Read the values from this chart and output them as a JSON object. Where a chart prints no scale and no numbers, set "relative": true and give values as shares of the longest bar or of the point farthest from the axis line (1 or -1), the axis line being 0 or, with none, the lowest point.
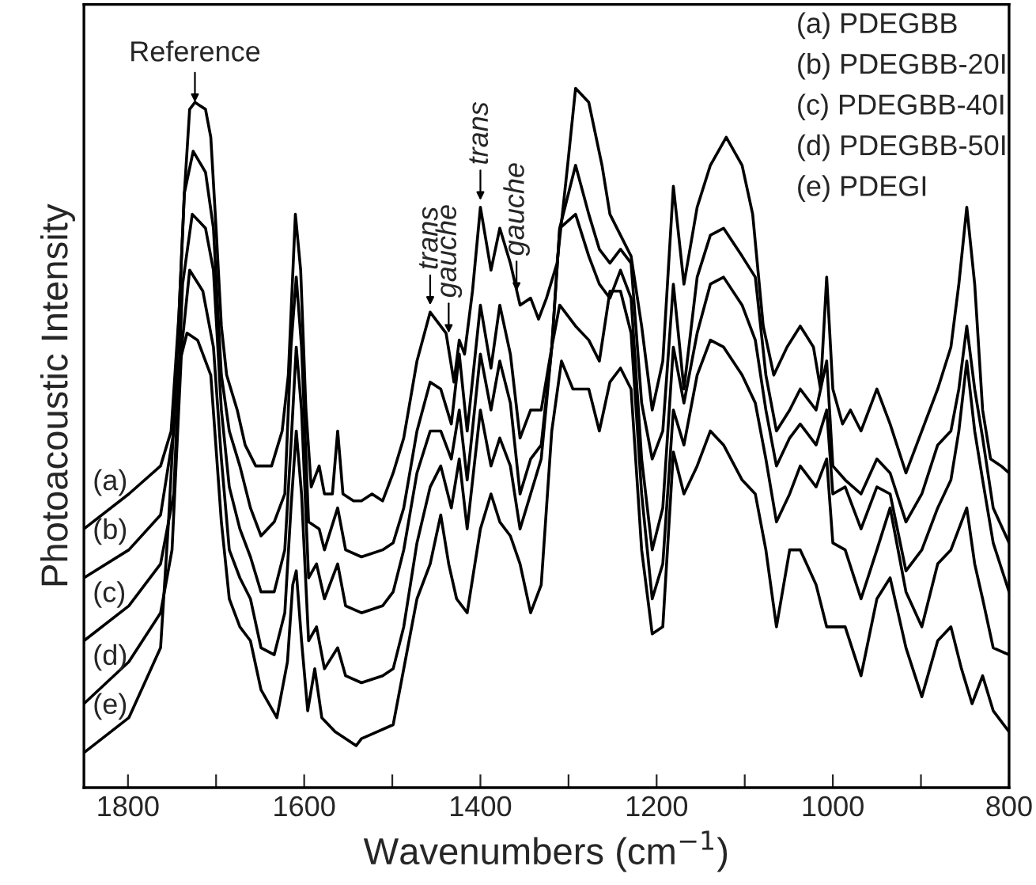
{
  "chart_data": {
    "type": "line",
    "relative": true,
    "xlabel": "Wavenumbers (cm$^{−1}$)",
    "ylabel": "Photoacoustic Intensity",
    "xlim": [
      1850,
      800
    ],
    "xticks": [
      1800,
      {
        "value": 1700,
        "label": null
      },
      1600,
      {
        "value": 1500,
        "label": null
      },
      1400,
      {
        "value": 1300,
        "label": null
      },
      1200,
      {
        "value": 1100,
        "label": null
      },
      1000,
      {
        "value": 900,
        "label": null
      },
      800
    ],
    "tick_labels": "x",
    "annotations": [
      "(a) PDEGBB",
      "(b) PDEGBB-20I",
      "(c) PDEGBB-40I",
      "(d) PDEGBB-50I",
      "(e) PDEGI",
      {
        "text": "Reference",
        "x": 1724,
        "y": 0.98
      },
      {
        "text": "trans",
        "x": 1457,
        "y": 0.69
      },
      {
        "text": "gauche",
        "x": 1436,
        "y": 0.65
      },
      {
        "text": "trans",
        "x": 1400,
        "y": 0.84
      },
      {
        "text": "gauche",
        "x": 1359,
        "y": 0.71
      }
    ],
    "series": [
      {
        "name": "(a)",
        "color": "#000000",
        "x": [
          1850,
          1799,
          1763,
          1751,
          1742,
          1736,
          1730,
          1724,
          1712,
          1706,
          1700,
          1694,
          1688,
          1676,
          1667,
          1655,
          1637,
          1625,
          1618,
          1610,
          1604,
          1598,
          1592,
          1583,
          1577,
          1568,
          1562,
          1556,
          1544,
          1535,
          1523,
          1511,
          1499,
          1487,
          1472,
          1457,
          1439,
          1430,
          1424,
          1418,
          1409,
          1400,
          1388,
          1378,
          1366,
          1355,
          1343,
          1334,
          1325,
          1313,
          1301,
          1292,
          1277,
          1262,
          1253,
          1241,
          1229,
          1217,
          1205,
          1193,
          1181,
          1169,
          1154,
          1139,
          1121,
          1103,
          1091,
          1079,
          1067,
          1052,
          1037,
          1022,
          1014,
          1007,
          1000,
          989,
          980,
          968,
          950,
          935,
          917,
          899,
          881,
          866,
          857,
          848,
          839,
          830,
          821,
          809,
          800
        ],
        "values": [
          0.37,
          0.42,
          0.46,
          0.51,
          0.68,
          0.85,
          0.97,
          0.98,
          0.97,
          0.93,
          0.8,
          0.66,
          0.59,
          0.54,
          0.49,
          0.46,
          0.46,
          0.51,
          0.59,
          0.82,
          0.74,
          0.54,
          0.43,
          0.46,
          0.42,
          0.42,
          0.51,
          0.42,
          0.41,
          0.41,
          0.42,
          0.41,
          0.45,
          0.5,
          0.61,
          0.68,
          0.65,
          0.58,
          0.64,
          0.62,
          0.71,
          0.83,
          0.74,
          0.8,
          0.75,
          0.69,
          0.7,
          0.67,
          0.7,
          0.75,
          0.89,
          1.0,
          0.98,
          0.89,
          0.82,
          0.79,
          0.76,
          0.66,
          0.54,
          0.61,
          0.86,
          0.72,
          0.83,
          0.89,
          0.93,
          0.89,
          0.82,
          0.66,
          0.59,
          0.63,
          0.66,
          0.63,
          0.57,
          0.73,
          0.57,
          0.52,
          0.54,
          0.51,
          0.57,
          0.52,
          0.45,
          0.51,
          0.57,
          0.63,
          0.72,
          0.83,
          0.72,
          0.54,
          0.47,
          0.46,
          0.45
        ]
      },
      {
        "name": "(b)",
        "color": "#000000",
        "x": [
          1850,
          1799,
          1763,
          1748,
          1736,
          1726,
          1712,
          1703,
          1694,
          1685,
          1673,
          1661,
          1649,
          1634,
          1622,
          1615,
          1609,
          1603,
          1595,
          1583,
          1577,
          1562,
          1553,
          1535,
          1511,
          1499,
          1487,
          1472,
          1457,
          1445,
          1433,
          1424,
          1415,
          1400,
          1388,
          1378,
          1366,
          1355,
          1343,
          1331,
          1319,
          1310,
          1292,
          1277,
          1265,
          1253,
          1241,
          1229,
          1217,
          1205,
          1193,
          1181,
          1169,
          1154,
          1139,
          1124,
          1103,
          1088,
          1076,
          1064,
          1049,
          1037,
          1019,
          1007,
          1000,
          986,
          968,
          950,
          935,
          917,
          899,
          881,
          866,
          857,
          848,
          839,
          830,
          818,
          800
        ],
        "values": [
          0.3,
          0.34,
          0.39,
          0.51,
          0.85,
          0.91,
          0.88,
          0.8,
          0.59,
          0.51,
          0.46,
          0.4,
          0.36,
          0.38,
          0.42,
          0.63,
          0.73,
          0.63,
          0.38,
          0.37,
          0.34,
          0.4,
          0.34,
          0.33,
          0.34,
          0.35,
          0.4,
          0.51,
          0.58,
          0.57,
          0.52,
          0.62,
          0.51,
          0.69,
          0.6,
          0.69,
          0.62,
          0.5,
          0.54,
          0.54,
          0.63,
          0.8,
          0.89,
          0.82,
          0.77,
          0.75,
          0.77,
          0.75,
          0.55,
          0.47,
          0.51,
          0.72,
          0.57,
          0.73,
          0.79,
          0.8,
          0.76,
          0.73,
          0.59,
          0.51,
          0.54,
          0.57,
          0.54,
          0.61,
          0.46,
          0.44,
          0.42,
          0.47,
          0.45,
          0.38,
          0.42,
          0.49,
          0.51,
          0.57,
          0.66,
          0.57,
          0.5,
          0.4,
          0.35
        ]
      },
      {
        "name": "(c)",
        "color": "#000000",
        "x": [
          1850,
          1799,
          1763,
          1748,
          1738,
          1727,
          1712,
          1703,
          1694,
          1685,
          1673,
          1661,
          1649,
          1634,
          1622,
          1615,
          1609,
          1603,
          1595,
          1586,
          1577,
          1562,
          1553,
          1535,
          1511,
          1499,
          1487,
          1472,
          1457,
          1445,
          1433,
          1424,
          1415,
          1400,
          1388,
          1378,
          1366,
          1355,
          1343,
          1331,
          1319,
          1310,
          1292,
          1277,
          1265,
          1253,
          1241,
          1229,
          1217,
          1205,
          1193,
          1181,
          1169,
          1154,
          1139,
          1124,
          1103,
          1088,
          1076,
          1064,
          1049,
          1037,
          1019,
          1007,
          1000,
          986,
          968,
          950,
          935,
          917,
          899,
          881,
          866,
          857,
          848,
          839,
          830,
          818,
          800
        ],
        "values": [
          0.21,
          0.26,
          0.32,
          0.42,
          0.72,
          0.82,
          0.8,
          0.74,
          0.54,
          0.43,
          0.37,
          0.33,
          0.28,
          0.28,
          0.34,
          0.49,
          0.63,
          0.54,
          0.3,
          0.32,
          0.27,
          0.32,
          0.26,
          0.25,
          0.26,
          0.28,
          0.34,
          0.45,
          0.51,
          0.51,
          0.47,
          0.54,
          0.44,
          0.62,
          0.54,
          0.61,
          0.55,
          0.42,
          0.47,
          0.49,
          0.63,
          0.8,
          0.82,
          0.76,
          0.72,
          0.7,
          0.74,
          0.7,
          0.47,
          0.34,
          0.4,
          0.63,
          0.55,
          0.65,
          0.72,
          0.73,
          0.69,
          0.64,
          0.54,
          0.46,
          0.5,
          0.52,
          0.49,
          0.54,
          0.42,
          0.43,
          0.37,
          0.43,
          0.42,
          0.31,
          0.34,
          0.4,
          0.44,
          0.51,
          0.61,
          0.51,
          0.44,
          0.35,
          0.28
        ]
      },
      {
        "name": "(d)",
        "color": "#000000",
        "x": [
          1850,
          1799,
          1763,
          1750,
          1739,
          1730,
          1715,
          1703,
          1694,
          1685,
          1673,
          1661,
          1649,
          1634,
          1622,
          1615,
          1609,
          1603,
          1595,
          1586,
          1577,
          1562,
          1553,
          1535,
          1511,
          1499,
          1487,
          1472,
          1457,
          1445,
          1433,
          1424,
          1415,
          1400,
          1388,
          1378,
          1366,
          1355,
          1343,
          1331,
          1319,
          1310,
          1292,
          1277,
          1265,
          1253,
          1241,
          1229,
          1217,
          1205,
          1193,
          1181,
          1169,
          1154,
          1139,
          1124,
          1103,
          1088,
          1076,
          1064,
          1049,
          1037,
          1019,
          1007,
          1000,
          986,
          968,
          950,
          935,
          917,
          899,
          881,
          866,
          857,
          848,
          839,
          830,
          818,
          800
        ],
        "values": [
          0.12,
          0.18,
          0.25,
          0.34,
          0.63,
          0.74,
          0.71,
          0.63,
          0.47,
          0.34,
          0.3,
          0.27,
          0.2,
          0.19,
          0.25,
          0.4,
          0.51,
          0.42,
          0.21,
          0.23,
          0.17,
          0.2,
          0.16,
          0.15,
          0.16,
          0.17,
          0.23,
          0.35,
          0.43,
          0.46,
          0.4,
          0.47,
          0.37,
          0.54,
          0.46,
          0.5,
          0.46,
          0.37,
          0.42,
          0.47,
          0.63,
          0.69,
          0.66,
          0.64,
          0.61,
          0.71,
          0.71,
          0.65,
          0.42,
          0.27,
          0.32,
          0.54,
          0.49,
          0.59,
          0.64,
          0.63,
          0.59,
          0.55,
          0.47,
          0.38,
          0.42,
          0.46,
          0.43,
          0.47,
          0.35,
          0.34,
          0.27,
          0.34,
          0.4,
          0.28,
          0.23,
          0.32,
          0.34,
          0.37,
          0.4,
          0.32,
          0.27,
          0.2,
          0.19
        ]
      },
      {
        "name": "(e)",
        "color": "#000000",
        "x": [
          1850,
          1799,
          1763,
          1754,
          1745,
          1733,
          1721,
          1706,
          1694,
          1685,
          1673,
          1661,
          1649,
          1631,
          1619,
          1613,
          1609,
          1603,
          1596,
          1588,
          1580,
          1565,
          1541,
          1535,
          1517,
          1499,
          1487,
          1472,
          1457,
          1445,
          1436,
          1427,
          1415,
          1400,
          1388,
          1378,
          1366,
          1355,
          1343,
          1331,
          1319,
          1308,
          1295,
          1277,
          1265,
          1253,
          1241,
          1229,
          1217,
          1205,
          1193,
          1181,
          1169,
          1154,
          1139,
          1124,
          1103,
          1088,
          1076,
          1064,
          1049,
          1037,
          1019,
          1007,
          1000,
          986,
          968,
          950,
          935,
          917,
          899,
          881,
          866,
          854,
          842,
          830,
          818,
          800
        ],
        "values": [
          0.05,
          0.1,
          0.2,
          0.38,
          0.59,
          0.65,
          0.64,
          0.59,
          0.38,
          0.27,
          0.23,
          0.21,
          0.14,
          0.1,
          0.18,
          0.29,
          0.31,
          0.21,
          0.11,
          0.17,
          0.1,
          0.08,
          0.06,
          0.07,
          0.08,
          0.09,
          0.17,
          0.27,
          0.32,
          0.39,
          0.32,
          0.27,
          0.25,
          0.37,
          0.42,
          0.38,
          0.36,
          0.32,
          0.25,
          0.29,
          0.51,
          0.61,
          0.57,
          0.57,
          0.51,
          0.58,
          0.6,
          0.57,
          0.34,
          0.22,
          0.23,
          0.48,
          0.42,
          0.46,
          0.51,
          0.49,
          0.44,
          0.42,
          0.34,
          0.23,
          0.34,
          0.34,
          0.29,
          0.23,
          0.23,
          0.23,
          0.16,
          0.27,
          0.3,
          0.2,
          0.13,
          0.21,
          0.23,
          0.17,
          0.12,
          0.16,
          0.11,
          0.08
        ]
      }
    ]
  }
}
